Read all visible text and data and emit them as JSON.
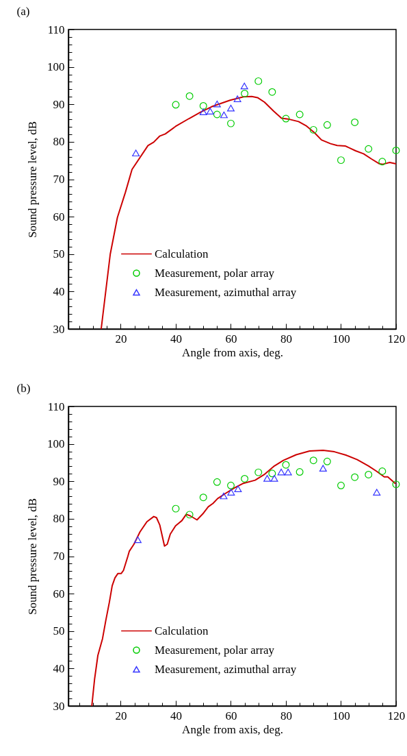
{
  "chart_data": [
    {
      "type": "line",
      "title": "(a)",
      "xlabel": "Angle from axis, deg.",
      "ylabel": "Sound pressure level, dB",
      "xlim": [
        1,
        120
      ],
      "ylim": [
        30,
        110
      ],
      "xticks": [
        {
          "value": 5,
          "label": null
        },
        {
          "value": 10,
          "label": null
        },
        {
          "value": 15,
          "label": null
        },
        20,
        {
          "value": 25,
          "label": null
        },
        {
          "value": 30,
          "label": null
        },
        {
          "value": 35,
          "label": null
        },
        40,
        {
          "value": 45,
          "label": null
        },
        {
          "value": 50,
          "label": null
        },
        {
          "value": 55,
          "label": null
        },
        60,
        {
          "value": 65,
          "label": null
        },
        {
          "value": 70,
          "label": null
        },
        {
          "value": 75,
          "label": null
        },
        80,
        {
          "value": 85,
          "label": null
        },
        {
          "value": 90,
          "label": null
        },
        {
          "value": 95,
          "label": null
        },
        100,
        {
          "value": 105,
          "label": null
        },
        {
          "value": 110,
          "label": null
        },
        {
          "value": 115,
          "label": null
        },
        120
      ],
      "yticks": [
        30,
        {
          "value": 32,
          "label": null
        },
        {
          "value": 34,
          "label": null
        },
        {
          "value": 36,
          "label": null
        },
        {
          "value": 38,
          "label": null
        },
        40,
        {
          "value": 42,
          "label": null
        },
        {
          "value": 44,
          "label": null
        },
        {
          "value": 46,
          "label": null
        },
        {
          "value": 48,
          "label": null
        },
        50,
        {
          "value": 52,
          "label": null
        },
        {
          "value": 54,
          "label": null
        },
        {
          "value": 56,
          "label": null
        },
        {
          "value": 58,
          "label": null
        },
        60,
        {
          "value": 62,
          "label": null
        },
        {
          "value": 64,
          "label": null
        },
        {
          "value": 66,
          "label": null
        },
        {
          "value": 68,
          "label": null
        },
        70,
        {
          "value": 72,
          "label": null
        },
        {
          "value": 74,
          "label": null
        },
        {
          "value": 76,
          "label": null
        },
        {
          "value": 78,
          "label": null
        },
        80,
        {
          "value": 82,
          "label": null
        },
        {
          "value": 84,
          "label": null
        },
        {
          "value": 86,
          "label": null
        },
        {
          "value": 88,
          "label": null
        },
        90,
        {
          "value": 92,
          "label": null
        },
        {
          "value": 94,
          "label": null
        },
        {
          "value": 96,
          "label": null
        },
        {
          "value": 98,
          "label": null
        },
        100,
        {
          "value": 102,
          "label": null
        },
        {
          "value": 104,
          "label": null
        },
        {
          "value": 106,
          "label": null
        },
        {
          "value": 108,
          "label": null
        },
        110
      ],
      "grid": false,
      "legend": "bottom left",
      "series": [
        {
          "name": "Calculation",
          "type": "line",
          "color": "#cc0000",
          "x": [
            12.9,
            16.2,
            18.8,
            21.7,
            24.1,
            29.9,
            32,
            34.1,
            36.2,
            39.9,
            44.8,
            49,
            53.1,
            59.7,
            64.6,
            67.6,
            69.7,
            72.2,
            75.5,
            78.4,
            81.3,
            84.6,
            87.5,
            90.4,
            92.9,
            96.2,
            98.6,
            101.5,
            105.3,
            108.2,
            111.1,
            114,
            115.2,
            117.7,
            120
          ],
          "values": [
            30,
            50,
            59.8,
            66.5,
            72.6,
            79,
            79.9,
            81.5,
            82.1,
            84.1,
            86.2,
            87.9,
            89.4,
            91.1,
            92,
            92.1,
            91.8,
            90.6,
            88.2,
            86.3,
            86,
            85.4,
            84.2,
            82.4,
            80.5,
            79.5,
            79,
            78.9,
            77.6,
            76.8,
            75.4,
            74.1,
            74,
            74.5,
            74.1
          ]
        },
        {
          "name": "Measurement, polar array",
          "type": "scatter",
          "marker": "circle",
          "color": "#00cc00",
          "x": [
            40,
            45,
            50,
            55,
            60,
            65,
            70,
            75,
            80,
            85,
            90,
            95,
            100,
            105,
            110,
            115,
            120
          ],
          "values": [
            89.9,
            92.2,
            89.6,
            87.3,
            84.9,
            92.9,
            96.2,
            93.3,
            86.2,
            87.3,
            83.2,
            84.5,
            75.1,
            85.2,
            78.1,
            74.7,
            77.7
          ]
        },
        {
          "name": "Measurement, azimuthal array",
          "type": "scatter",
          "marker": "triangle",
          "color": "#3333ff",
          "x": [
            25.5,
            50,
            52.5,
            55,
            57.5,
            60,
            62.4,
            64.9
          ],
          "values": [
            77,
            88,
            88.2,
            90.1,
            87.2,
            89,
            91.5,
            94.9
          ]
        }
      ]
    },
    {
      "type": "line",
      "title": "(b)",
      "xlabel": "Angle from axis, deg.",
      "ylabel": "Sound pressure level, dB",
      "xlim": [
        1,
        120
      ],
      "ylim": [
        30,
        110
      ],
      "xticks": [
        {
          "value": 5,
          "label": null
        },
        {
          "value": 10,
          "label": null
        },
        {
          "value": 15,
          "label": null
        },
        20,
        {
          "value": 25,
          "label": null
        },
        {
          "value": 30,
          "label": null
        },
        {
          "value": 35,
          "label": null
        },
        40,
        {
          "value": 45,
          "label": null
        },
        {
          "value": 50,
          "label": null
        },
        {
          "value": 55,
          "label": null
        },
        60,
        {
          "value": 65,
          "label": null
        },
        {
          "value": 70,
          "label": null
        },
        {
          "value": 75,
          "label": null
        },
        80,
        {
          "value": 85,
          "label": null
        },
        {
          "value": 90,
          "label": null
        },
        {
          "value": 95,
          "label": null
        },
        100,
        {
          "value": 105,
          "label": null
        },
        {
          "value": 110,
          "label": null
        },
        {
          "value": 115,
          "label": null
        },
        120
      ],
      "yticks": [
        30,
        {
          "value": 32,
          "label": null
        },
        {
          "value": 34,
          "label": null
        },
        {
          "value": 36,
          "label": null
        },
        {
          "value": 38,
          "label": null
        },
        40,
        {
          "value": 42,
          "label": null
        },
        {
          "value": 44,
          "label": null
        },
        {
          "value": 46,
          "label": null
        },
        {
          "value": 48,
          "label": null
        },
        50,
        {
          "value": 52,
          "label": null
        },
        {
          "value": 54,
          "label": null
        },
        {
          "value": 56,
          "label": null
        },
        {
          "value": 58,
          "label": null
        },
        60,
        {
          "value": 62,
          "label": null
        },
        {
          "value": 64,
          "label": null
        },
        {
          "value": 66,
          "label": null
        },
        {
          "value": 68,
          "label": null
        },
        70,
        {
          "value": 72,
          "label": null
        },
        {
          "value": 74,
          "label": null
        },
        {
          "value": 76,
          "label": null
        },
        {
          "value": 78,
          "label": null
        },
        80,
        {
          "value": 82,
          "label": null
        },
        {
          "value": 84,
          "label": null
        },
        {
          "value": 86,
          "label": null
        },
        {
          "value": 88,
          "label": null
        },
        90,
        {
          "value": 92,
          "label": null
        },
        {
          "value": 94,
          "label": null
        },
        {
          "value": 96,
          "label": null
        },
        {
          "value": 98,
          "label": null
        },
        100,
        {
          "value": 102,
          "label": null
        },
        {
          "value": 104,
          "label": null
        },
        {
          "value": 106,
          "label": null
        },
        {
          "value": 108,
          "label": null
        },
        110
      ],
      "grid": false,
      "legend": "bottom left",
      "series": [
        {
          "name": "Calculation",
          "type": "line",
          "color": "#cc0000",
          "x": [
            9.5,
            10.5,
            11.7,
            13.4,
            14.6,
            15.9,
            16.9,
            17.9,
            19,
            20.2,
            21,
            22.6,
            23.1,
            24.8,
            27,
            29.5,
            32,
            33,
            34.2,
            35.9,
            36.9,
            38,
            39.9,
            42.2,
            43.8,
            45.2,
            47.7,
            49.8,
            51.8,
            53.5,
            55.2,
            58.1,
            61.4,
            64.3,
            68.8,
            72.1,
            75.8,
            79.1,
            83.7,
            88.6,
            93.5,
            97.6,
            101.8,
            105.9,
            110,
            112.9,
            115.7,
            117,
            119.6
          ],
          "values": [
            30,
            37.1,
            43.5,
            48,
            52.9,
            57.8,
            62.1,
            64.2,
            65.4,
            65.4,
            66.2,
            70,
            71.3,
            73.2,
            76.5,
            79.2,
            80.6,
            80.3,
            78.3,
            72.7,
            73.2,
            75.9,
            78.1,
            79.5,
            81.2,
            80.8,
            79.7,
            81.3,
            83.2,
            84.1,
            85.4,
            86.8,
            88.3,
            89.4,
            90.3,
            91.8,
            94.1,
            95.6,
            97.1,
            98.1,
            98.3,
            97.9,
            97,
            95.8,
            94.1,
            92.7,
            91.2,
            91.2,
            89.5
          ]
        },
        {
          "name": "Measurement, polar array",
          "type": "scatter",
          "marker": "circle",
          "color": "#00cc00",
          "x": [
            40,
            45,
            50,
            55,
            60,
            65,
            70,
            75,
            80,
            85,
            90,
            95,
            100,
            105,
            110,
            115,
            120
          ],
          "values": [
            82.7,
            81.1,
            85.7,
            89.8,
            88.9,
            90.7,
            92.4,
            92.1,
            94.4,
            92.5,
            95.6,
            95.3,
            88.9,
            91.1,
            91.8,
            92.7,
            89.2
          ]
        },
        {
          "name": "Measurement, azimuthal array",
          "type": "scatter",
          "marker": "triangle",
          "color": "#3333ff",
          "x": [
            26.2,
            57.4,
            60.1,
            62.6,
            73.2,
            75.8,
            78.3,
            80.8,
            93.5,
            113
          ],
          "values": [
            74.4,
            86.1,
            87.1,
            88,
            90.8,
            90.8,
            92.5,
            92.5,
            93.5,
            87.1
          ]
        }
      ]
    }
  ]
}
